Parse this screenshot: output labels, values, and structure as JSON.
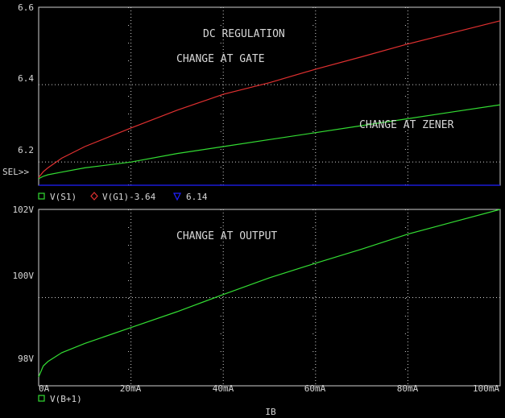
{
  "chart_data": [
    {
      "type": "line",
      "panel": "upper",
      "title": "DC REGULATION",
      "annotations": [
        "CHANGE AT GATE",
        "CHANGE AT ZENER"
      ],
      "selector": "SEL>>",
      "ylim": [
        6.14,
        6.6
      ],
      "yticks": [
        "6.6",
        "6.4",
        "6.2"
      ],
      "grid": true,
      "legend_placement": "below-plot",
      "series": [
        {
          "name": "V(S1)",
          "marker": "square",
          "color": "#33dd33",
          "x": [
            0,
            1,
            2,
            5,
            10,
            20,
            30,
            40,
            50,
            60,
            70,
            80,
            90,
            100
          ],
          "y": [
            6.157,
            6.163,
            6.167,
            6.174,
            6.185,
            6.2,
            6.222,
            6.24,
            6.258,
            6.276,
            6.294,
            6.312,
            6.33,
            6.348
          ]
        },
        {
          "name": "V(G1)-3.64",
          "marker": "diamond",
          "color": "#e03030",
          "x": [
            0,
            1,
            2,
            5,
            10,
            20,
            30,
            40,
            50,
            60,
            70,
            80,
            90,
            100
          ],
          "y": [
            6.16,
            6.175,
            6.185,
            6.21,
            6.24,
            6.288,
            6.334,
            6.375,
            6.405,
            6.44,
            6.472,
            6.505,
            6.535,
            6.565
          ]
        },
        {
          "name": "6.14",
          "marker": "triangle",
          "color": "#2020ff",
          "x": [
            0,
            100
          ],
          "y": [
            6.14,
            6.14
          ]
        }
      ]
    },
    {
      "type": "line",
      "panel": "lower",
      "annotations": [
        "CHANGE AT OUTPUT"
      ],
      "ylim": [
        98,
        102
      ],
      "yticks": [
        "102V",
        "100V",
        "98V"
      ],
      "xlim": [
        0,
        100
      ],
      "xticks": [
        "0A",
        "20mA",
        "40mA",
        "60mA",
        "80mA",
        "100mA"
      ],
      "xlabel": "IB",
      "grid": true,
      "legend_placement": "below-plot",
      "series": [
        {
          "name": "V(B+1)",
          "marker": "square",
          "color": "#33dd33",
          "x": [
            0,
            1,
            2,
            5,
            10,
            20,
            30,
            40,
            50,
            60,
            70,
            80,
            90,
            100
          ],
          "y": [
            98.2,
            98.45,
            98.55,
            98.75,
            98.96,
            99.32,
            99.68,
            100.07,
            100.45,
            100.78,
            101.1,
            101.44,
            101.72,
            102.0
          ]
        }
      ]
    }
  ]
}
